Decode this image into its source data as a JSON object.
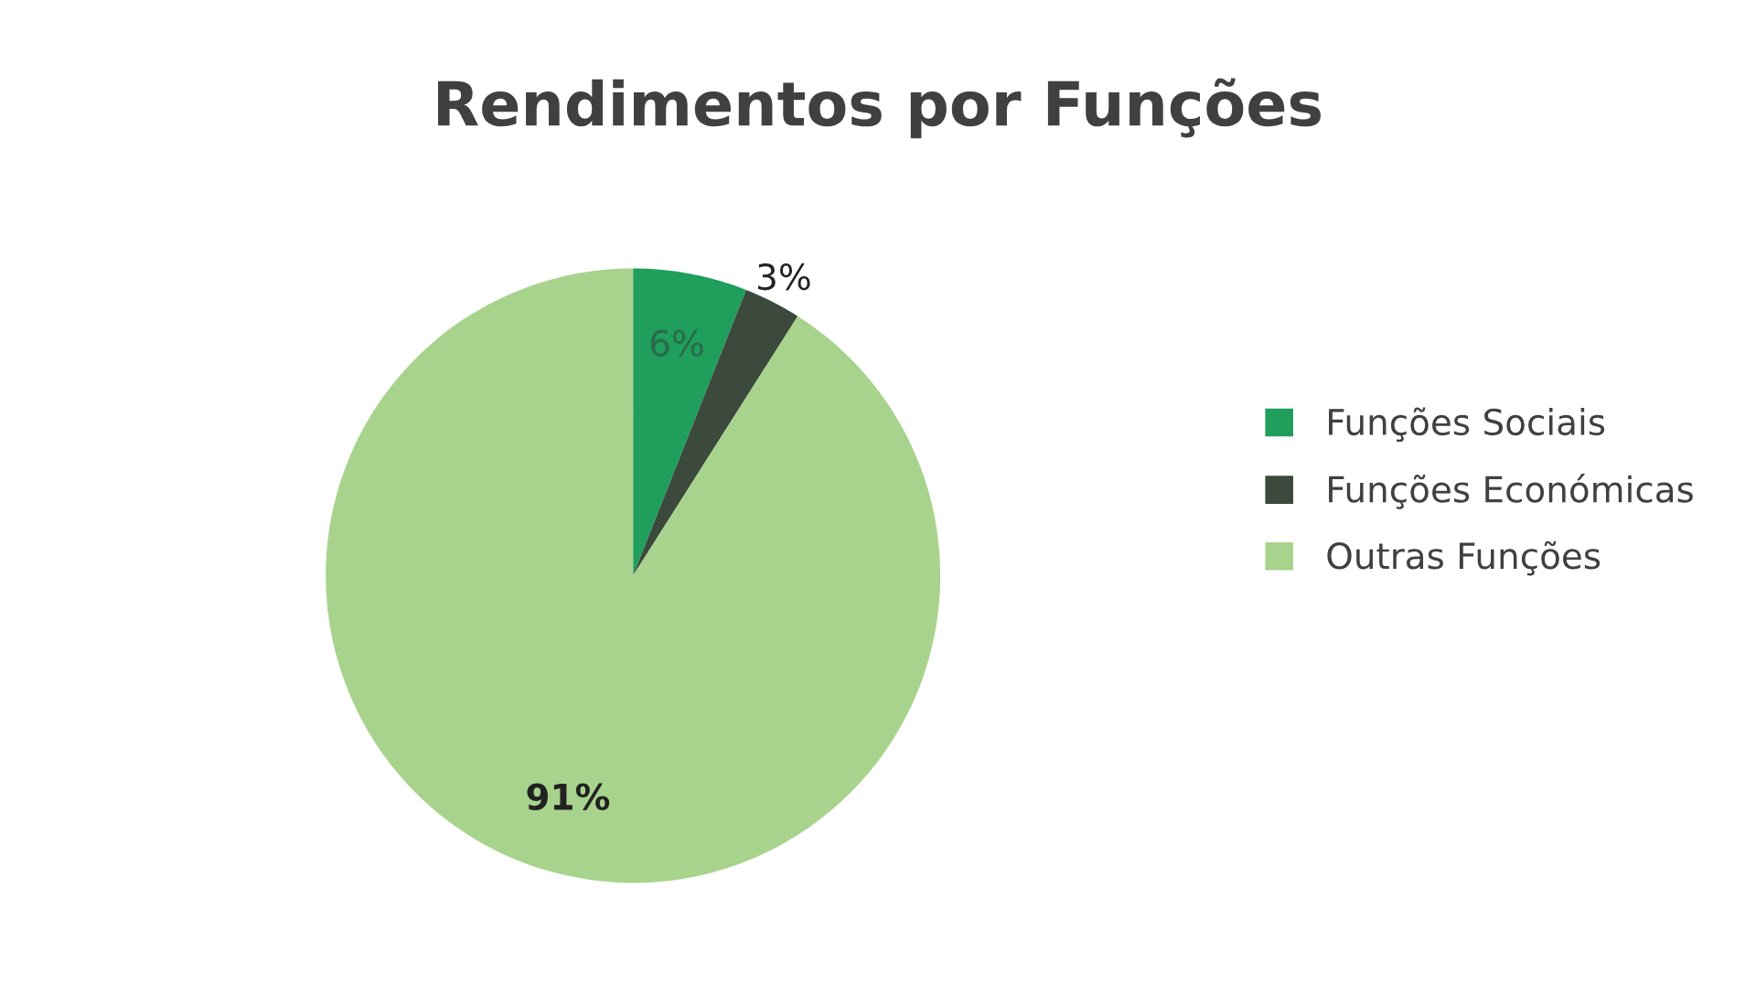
{
  "chart_data": {
    "type": "pie",
    "title": "Rendimentos por Funções",
    "categories": [
      "Funções Sociais",
      "Funções Económicas",
      "Outras Funções"
    ],
    "values": [
      6,
      3,
      91
    ],
    "colors": [
      "#1f9e5c",
      "#3b4a3d",
      "#a8d38c"
    ],
    "value_labels": [
      "6%",
      "3%",
      "91%"
    ],
    "legend": "right"
  }
}
